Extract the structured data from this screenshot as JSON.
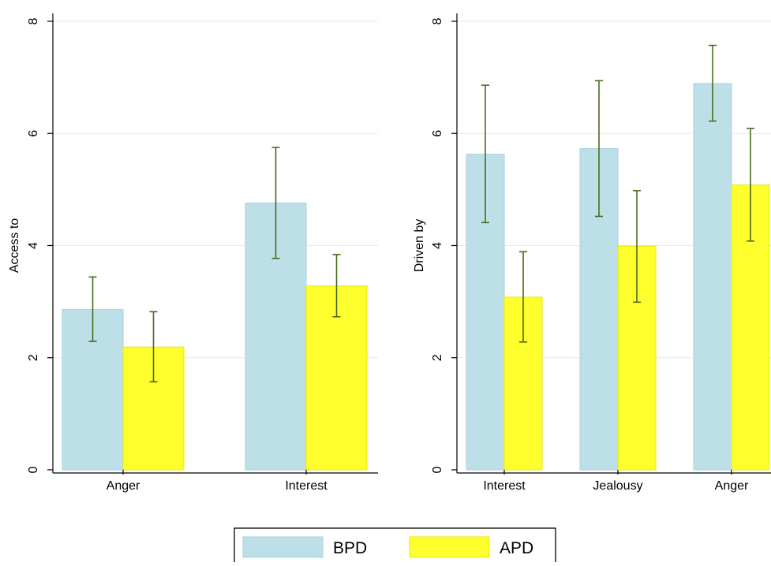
{
  "chart_data": [
    {
      "type": "bar",
      "ylabel": "Access to",
      "xlabel": "",
      "ylim": [
        0,
        8
      ],
      "yticks": [
        0,
        2,
        4,
        6,
        8
      ],
      "grid": true,
      "error_bars": true,
      "categories": [
        "Anger",
        "Interest"
      ],
      "series": [
        {
          "name": "BPD",
          "values": [
            2.86,
            4.76
          ],
          "err_low": [
            2.29,
            3.77
          ],
          "err_high": [
            3.44,
            5.75
          ]
        },
        {
          "name": "APD",
          "values": [
            2.19,
            3.28
          ],
          "err_low": [
            1.57,
            2.73
          ],
          "err_high": [
            2.82,
            3.84
          ]
        }
      ]
    },
    {
      "type": "bar",
      "ylabel": "Driven by",
      "xlabel": "",
      "ylim": [
        0,
        8
      ],
      "yticks": [
        0,
        2,
        4,
        6,
        8
      ],
      "grid": true,
      "error_bars": true,
      "categories": [
        "Interest",
        "Jealousy",
        "Anger"
      ],
      "series": [
        {
          "name": "BPD",
          "values": [
            5.63,
            5.73,
            6.89
          ],
          "err_low": [
            4.41,
            4.52,
            6.22
          ],
          "err_high": [
            6.86,
            6.94,
            7.57
          ]
        },
        {
          "name": "APD",
          "values": [
            3.08,
            3.99,
            5.08
          ],
          "err_low": [
            2.28,
            2.99,
            4.08
          ],
          "err_high": [
            3.89,
            4.98,
            6.09
          ]
        }
      ]
    }
  ],
  "legend": {
    "position": "bottom",
    "items": [
      {
        "label": "BPD",
        "color": "#bde0e8"
      },
      {
        "label": "APD",
        "color": "#ffff2e"
      }
    ]
  },
  "colors": {
    "bpd_fill": "#bde0e8",
    "bpd_stroke": "#a7d2de",
    "apd_fill": "#ffff2e",
    "apd_stroke": "#e8e800",
    "error_bar": "#4a6b1e",
    "grid": "#eaeaea",
    "axis": "#000000"
  }
}
